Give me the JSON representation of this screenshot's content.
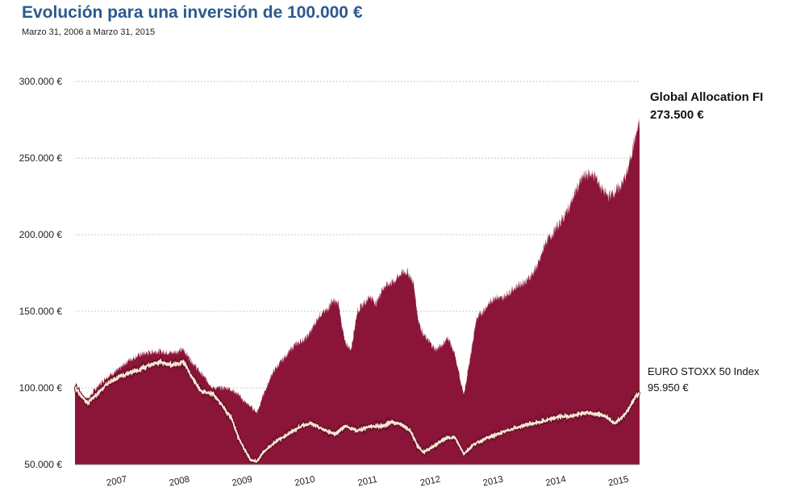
{
  "chart_data": {
    "type": "area",
    "title": "Evolución para una inversión de 100.000  €",
    "subtitle": "Marzo 31, 2006 a Marzo  31, 2015",
    "xlabel": "",
    "ylabel": "",
    "xlim": [
      2006.25,
      2015.25
    ],
    "ylim": [
      50000,
      300000
    ],
    "y_ticks": [
      50000,
      100000,
      150000,
      200000,
      250000,
      300000
    ],
    "y_tick_labels": [
      "50.000 €",
      "100.000 €",
      "150.000 €",
      "200.000 €",
      "250.000 €",
      "300.000 €"
    ],
    "x_tick_labels": [
      "2007",
      "2008",
      "2009",
      "2010",
      "2011",
      "2012",
      "2013",
      "2014",
      "2015"
    ],
    "x_ticks": [
      2007.0,
      2008.0,
      2009.0,
      2010.0,
      2011.0,
      2012.0,
      2013.0,
      2014.0,
      2015.0
    ],
    "grid": "horizontal dashed",
    "series": [
      {
        "name": "Global Allocation FI",
        "end_label": "273.500 €",
        "color": "#8b1538",
        "style": "area",
        "x": [
          2006.25,
          2006.35,
          2006.45,
          2006.55,
          2006.75,
          2006.95,
          2007.1,
          2007.3,
          2007.55,
          2007.8,
          2007.98,
          2008.1,
          2008.25,
          2008.45,
          2008.7,
          2008.85,
          2008.95,
          2009.05,
          2009.15,
          2009.25,
          2009.4,
          2009.55,
          2009.75,
          2009.95,
          2010.05,
          2010.15,
          2010.25,
          2010.35,
          2010.45,
          2010.55,
          2010.65,
          2010.75,
          2010.85,
          2010.95,
          2011.05,
          2011.15,
          2011.25,
          2011.35,
          2011.45,
          2011.55,
          2011.65,
          2011.72,
          2011.8,
          2011.9,
          2012.0,
          2012.1,
          2012.2,
          2012.3,
          2012.38,
          2012.45,
          2012.55,
          2012.65,
          2012.75,
          2012.85,
          2012.95,
          2013.05,
          2013.15,
          2013.25,
          2013.35,
          2013.45,
          2013.55,
          2013.65,
          2013.75,
          2013.85,
          2013.95,
          2014.05,
          2014.15,
          2014.25,
          2014.35,
          2014.45,
          2014.55,
          2014.65,
          2014.75,
          2014.85,
          2014.95,
          2015.05,
          2015.15,
          2015.25
        ],
        "values": [
          100000,
          96000,
          91000,
          98000,
          107000,
          112000,
          118000,
          122000,
          124000,
          123000,
          125000,
          118000,
          110000,
          100000,
          100000,
          96000,
          91000,
          88000,
          84000,
          95000,
          110000,
          118000,
          128000,
          133000,
          140000,
          148000,
          150000,
          157000,
          155000,
          130000,
          125000,
          150000,
          155000,
          160000,
          155000,
          165000,
          168000,
          170000,
          175000,
          176000,
          168000,
          145000,
          135000,
          130000,
          125000,
          128000,
          133000,
          122000,
          108000,
          95000,
          120000,
          145000,
          150000,
          155000,
          160000,
          158000,
          162000,
          165000,
          168000,
          170000,
          175000,
          182000,
          195000,
          200000,
          206000,
          212000,
          220000,
          230000,
          238000,
          240000,
          238000,
          230000,
          225000,
          228000,
          232000,
          240000,
          258000,
          273500
        ]
      },
      {
        "name": "EURO STOXX 50 Index",
        "end_label": "95.950 €",
        "color": "#fbe3d4",
        "style": "line",
        "x": [
          2006.25,
          2006.35,
          2006.45,
          2006.6,
          2006.8,
          2007.0,
          2007.2,
          2007.4,
          2007.6,
          2007.8,
          2007.98,
          2008.1,
          2008.25,
          2008.45,
          2008.6,
          2008.75,
          2008.85,
          2008.95,
          2009.05,
          2009.15,
          2009.25,
          2009.45,
          2009.65,
          2009.85,
          2010.0,
          2010.2,
          2010.4,
          2010.55,
          2010.75,
          2010.95,
          2011.15,
          2011.3,
          2011.45,
          2011.6,
          2011.7,
          2011.8,
          2011.9,
          2012.0,
          2012.15,
          2012.3,
          2012.45,
          2012.6,
          2012.8,
          2013.0,
          2013.2,
          2013.45,
          2013.7,
          2013.95,
          2014.2,
          2014.4,
          2014.55,
          2014.7,
          2014.85,
          2015.0,
          2015.1,
          2015.2,
          2015.25
        ],
        "values": [
          100000,
          95000,
          90000,
          96000,
          104000,
          108000,
          111000,
          114000,
          117000,
          115000,
          117000,
          108000,
          98000,
          96000,
          88000,
          80000,
          68000,
          60000,
          53000,
          52000,
          58000,
          65000,
          70000,
          75000,
          77000,
          73000,
          70000,
          75000,
          72000,
          75000,
          75000,
          78000,
          76000,
          72000,
          63000,
          58000,
          60000,
          63000,
          67000,
          68000,
          57000,
          63000,
          67000,
          70000,
          73000,
          76000,
          78000,
          81000,
          82000,
          84000,
          83000,
          82000,
          77000,
          82000,
          88000,
          95000,
          95950
        ]
      }
    ]
  }
}
